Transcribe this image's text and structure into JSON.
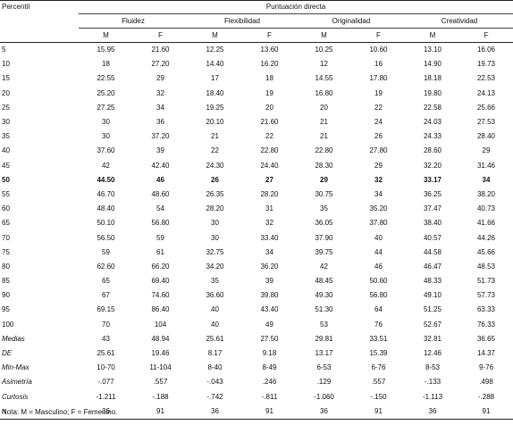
{
  "header": {
    "percentile_label": "Percentil",
    "group_title": "Puntuación directa",
    "groups": [
      "Fluidez",
      "Flexibilidad",
      "Originalidad",
      "Creatividad"
    ],
    "subheaders": [
      "M",
      "F",
      "M",
      "F",
      "M",
      "F",
      "M",
      "F"
    ]
  },
  "rows": [
    {
      "label": "5",
      "values": [
        "15.95",
        "21.60",
        "12.25",
        "13.60",
        "10.25",
        "10.60",
        "13.10",
        "16.06"
      ]
    },
    {
      "label": "10",
      "values": [
        "18",
        "27.20",
        "14.40",
        "16.20",
        "12",
        "16",
        "14.90",
        "19.73"
      ]
    },
    {
      "label": "15",
      "values": [
        "22.55",
        "29",
        "17",
        "18",
        "14.55",
        "17.80",
        "18.18",
        "22.53"
      ]
    },
    {
      "label": "20",
      "values": [
        "25.20",
        "32",
        "18.40",
        "19",
        "16.80",
        "19",
        "19.80",
        "24.13"
      ]
    },
    {
      "label": "25",
      "values": [
        "27.25",
        "34",
        "19.25",
        "20",
        "20",
        "22",
        "22.58",
        "25.66"
      ]
    },
    {
      "label": "30",
      "values": [
        "30",
        "36",
        "20.10",
        "21.60",
        "21",
        "24",
        "24.03",
        "27.53"
      ]
    },
    {
      "label": "35",
      "values": [
        "30",
        "37.20",
        "21",
        "22",
        "21",
        "26",
        "24.33",
        "28.40"
      ]
    },
    {
      "label": "40",
      "values": [
        "37.60",
        "39",
        "22",
        "22.80",
        "22.80",
        "27.80",
        "28.60",
        "29"
      ]
    },
    {
      "label": "45",
      "values": [
        "42",
        "42.40",
        "24.30",
        "24.40",
        "28.30",
        "29",
        "32.20",
        "31.46"
      ]
    },
    {
      "label": "50",
      "values": [
        "44.50",
        "46",
        "26",
        "27",
        "29",
        "32",
        "33.17",
        "34"
      ],
      "bold": true
    },
    {
      "label": "55",
      "values": [
        "46.70",
        "48.60",
        "26.35",
        "28.20",
        "30.75",
        "34",
        "36.25",
        "38.20"
      ]
    },
    {
      "label": "60",
      "values": [
        "48.40",
        "54",
        "28.20",
        "31",
        "35",
        "35.20",
        "37.47",
        "40.73"
      ]
    },
    {
      "label": "65",
      "values": [
        "50.10",
        "56.80",
        "30",
        "32",
        "36.05",
        "37.80",
        "38.40",
        "41.66"
      ]
    },
    {
      "label": "70",
      "values": [
        "56.50",
        "59",
        "30",
        "33.40",
        "37.90",
        "40",
        "40.57",
        "44.26"
      ]
    },
    {
      "label": "75",
      "values": [
        "59",
        "61",
        "32.75",
        "34",
        "39.75",
        "44",
        "44.58",
        "45.66"
      ]
    },
    {
      "label": "80",
      "values": [
        "62.60",
        "66.20",
        "34.20",
        "36.20",
        "42",
        "46",
        "46.47",
        "48.53"
      ]
    },
    {
      "label": "85",
      "values": [
        "65",
        "69.40",
        "35",
        "39",
        "48.45",
        "50.60",
        "48.33",
        "51.73"
      ]
    },
    {
      "label": "90",
      "values": [
        "67",
        "74.60",
        "36.60",
        "39.80",
        "49.30",
        "56.80",
        "49.10",
        "57.73"
      ]
    },
    {
      "label": "95",
      "values": [
        "69.15",
        "86.40",
        "40",
        "43.40",
        "51.30",
        "64",
        "51.25",
        "63.33"
      ]
    },
    {
      "label": "100",
      "values": [
        "70",
        "104",
        "40",
        "49",
        "53",
        "76",
        "52.67",
        "76.33"
      ]
    }
  ],
  "stats": [
    {
      "label": "Medias",
      "values": [
        "43",
        "48.94",
        "25.61",
        "27.50",
        "29.81",
        "33.51",
        "32.81",
        "36.65"
      ]
    },
    {
      "label": "DE",
      "values": [
        "25.61",
        "19.46",
        "8.17",
        "9.18",
        "13.17",
        "15.39",
        "12.46",
        "14.37"
      ]
    },
    {
      "label": "Min-Max",
      "values": [
        "10-70",
        "11-104",
        "8-40",
        "8-49",
        "6-53",
        "6-76",
        "8-53",
        "9-76"
      ]
    },
    {
      "label": "Asimetría",
      "values": [
        "-.077",
        ".557",
        "-.043",
        ".246",
        ".129",
        ".557",
        "-.133",
        ".498"
      ]
    },
    {
      "label": "Curtosis",
      "values": [
        "-1.211",
        "-.188",
        "-.742",
        "-.811",
        "-1.060",
        "-.150",
        "-1.113",
        "-.288"
      ]
    },
    {
      "label": "n",
      "values": [
        "36",
        "91",
        "36",
        "91",
        "36",
        "91",
        "36",
        "91"
      ]
    }
  ],
  "note": "Nota: M = Masculino; F = Femenino."
}
